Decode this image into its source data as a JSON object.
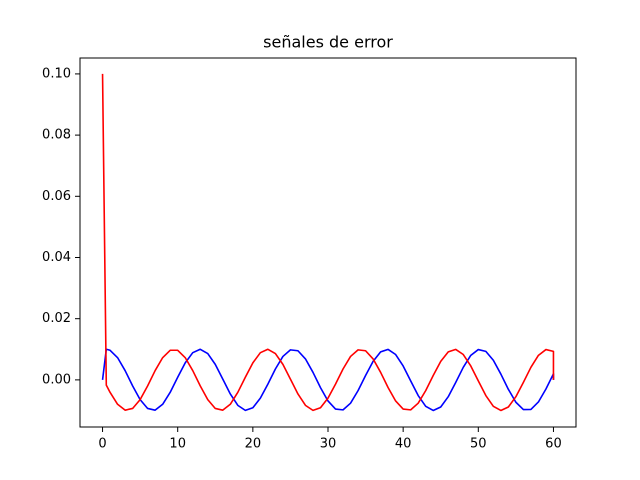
{
  "chart_data": {
    "type": "line",
    "title": "señales de error",
    "x": [
      0,
      0.5,
      1,
      2,
      3,
      4,
      5,
      6,
      7,
      8,
      9,
      10,
      11,
      12,
      13,
      14,
      15,
      16,
      17,
      18,
      19,
      20,
      21,
      22,
      23,
      24,
      25,
      26,
      27,
      28,
      29,
      30,
      31,
      32,
      33,
      34,
      35,
      36,
      37,
      38,
      39,
      40,
      41,
      42,
      43,
      44,
      45,
      46,
      47,
      48,
      49,
      50,
      51,
      52,
      53,
      54,
      55,
      56,
      57,
      58,
      59,
      60,
      60
    ],
    "series": [
      {
        "color": "#0000ff",
        "values": [
          0,
          0.01,
          0.00968,
          0.00727,
          0.00304,
          -0.00195,
          -0.00646,
          -0.00934,
          -0.0099,
          -0.00798,
          -0.00407,
          0.00085,
          0.00556,
          0.00889,
          0.01,
          0.00861,
          0.00507,
          0.00026,
          -0.0046,
          -0.00833,
          -0.00997,
          -0.00912,
          -0.00596,
          -0.00138,
          0.00356,
          0.00766,
          0.00981,
          0.00952,
          0.00685,
          0.00247,
          -0.00252,
          -0.00689,
          -0.00954,
          -0.0098,
          -0.00762,
          -0.00352,
          0.00143,
          0.00603,
          0.00914,
          0.00996,
          0.00829,
          0.00455,
          -0.00032,
          -0.00512,
          -0.00864,
          -0.01,
          -0.00886,
          -0.0055,
          -0.00081,
          0.00411,
          0.00802,
          0.00991,
          0.00932,
          0.00641,
          0.0019,
          -0.00309,
          -0.00731,
          -0.0097,
          -0.00967,
          -0.00722,
          -0.00298,
          0.00198,
          0
        ]
      },
      {
        "color": "#ff0000",
        "values": [
          0.1,
          -0.0017,
          -0.00407,
          -0.00798,
          -0.0099,
          -0.00934,
          -0.00646,
          -0.00195,
          0.00304,
          0.00727,
          0.00968,
          0.00968,
          0.00727,
          0.00304,
          -0.00195,
          -0.00646,
          -0.00934,
          -0.0099,
          -0.00798,
          -0.00407,
          0.00085,
          0.00556,
          0.00889,
          0.01,
          0.00861,
          0.00507,
          0.00026,
          -0.0046,
          -0.00833,
          -0.00997,
          -0.00912,
          -0.00596,
          -0.00138,
          0.00356,
          0.00766,
          0.00981,
          0.00952,
          0.00685,
          0.00247,
          -0.00252,
          -0.00689,
          -0.00954,
          -0.0098,
          -0.00762,
          -0.00352,
          0.00143,
          0.00603,
          0.00914,
          0.00996,
          0.00829,
          0.00455,
          -0.00032,
          -0.00512,
          -0.00864,
          -0.01,
          -0.00886,
          -0.0055,
          -0.00081,
          0.00411,
          0.00802,
          0.00991,
          0.00932,
          0
        ]
      }
    ],
    "xlim": [
      -3,
      63
    ],
    "ylim": [
      -0.0154,
      0.1052
    ],
    "xticks": [
      0,
      10,
      20,
      30,
      40,
      50,
      60
    ],
    "yticks": [
      {
        "value": 0,
        "label": "0.00"
      },
      {
        "value": 0.02,
        "label": "0.02"
      },
      {
        "value": 0.04,
        "label": "0.04"
      },
      {
        "value": 0.06,
        "label": "0.06"
      },
      {
        "value": 0.08,
        "label": "0.08"
      },
      {
        "value": 0.1,
        "label": "0.10"
      }
    ],
    "grid": false
  }
}
